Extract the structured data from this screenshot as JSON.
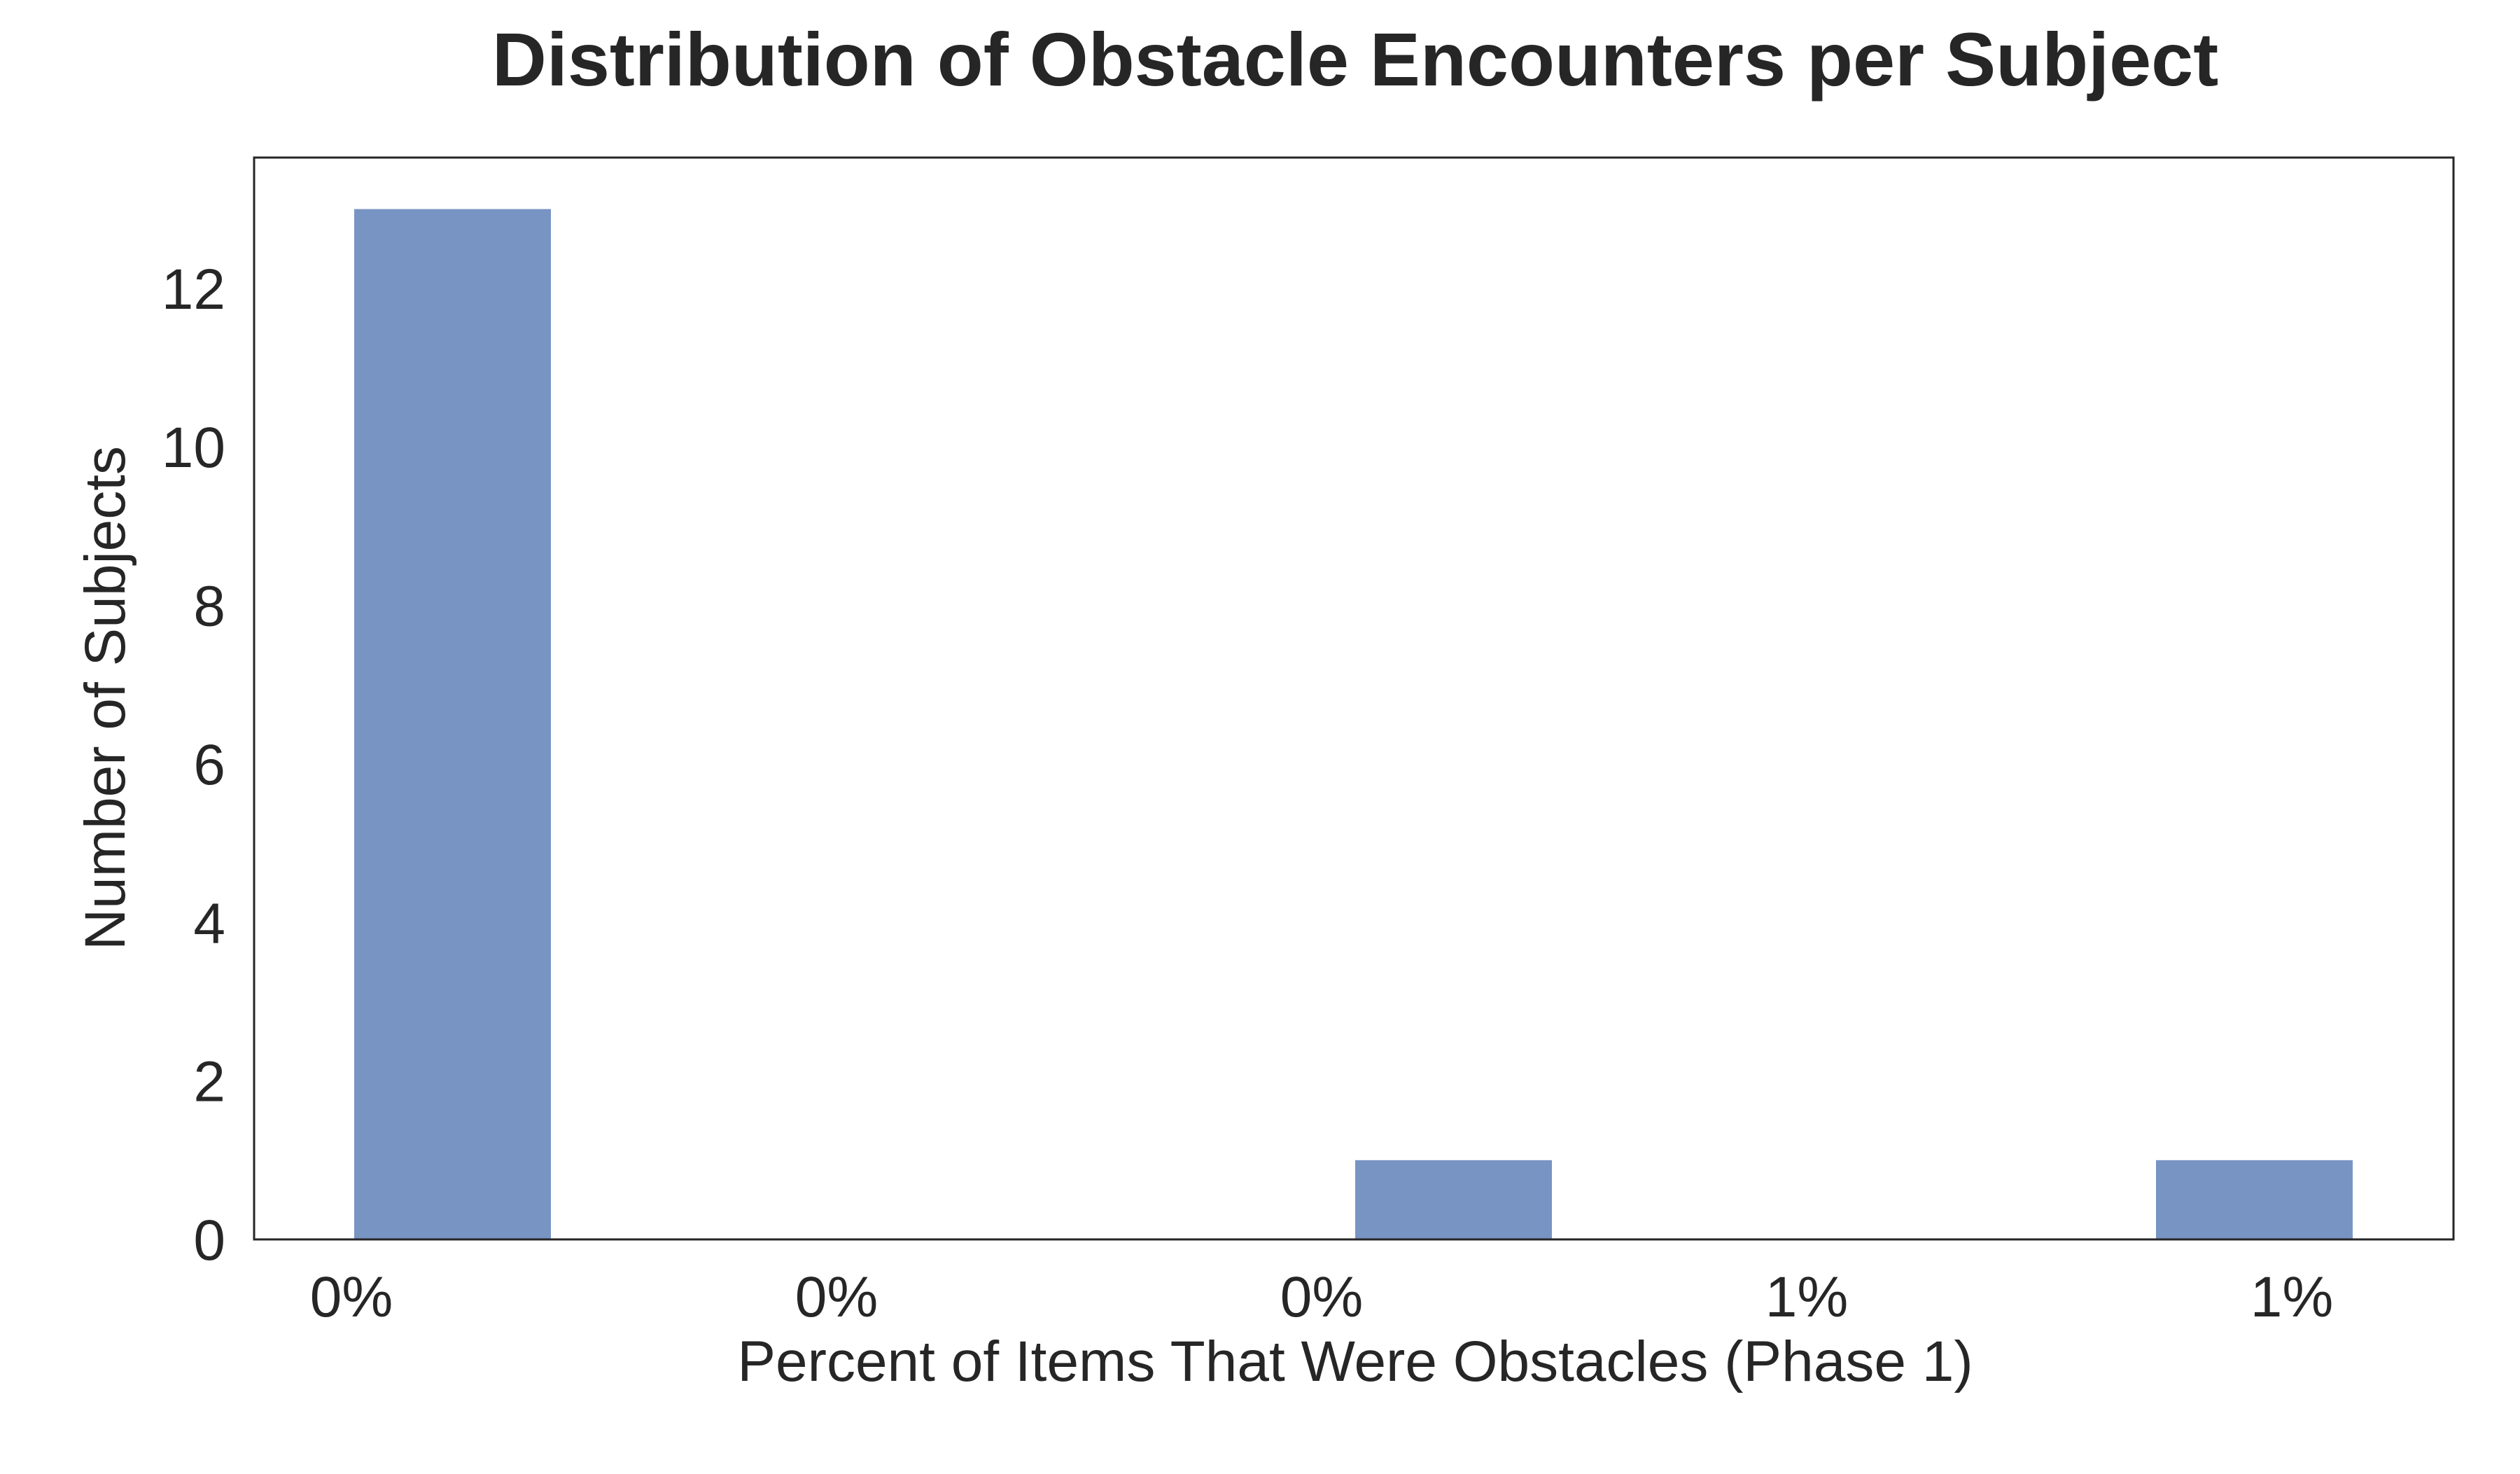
{
  "chart_data": {
    "type": "bar",
    "title": "Distribution of Obstacle Encounters per Subject",
    "xlabel": "Percent of Items That Were Obstacles (Phase 1)",
    "ylabel": "Number of Subjects",
    "x_tick_labels": [
      "0%",
      "0%",
      "0%",
      "1%",
      "1%"
    ],
    "y_ticks": [
      0,
      2,
      4,
      6,
      8,
      10,
      12
    ],
    "bins": [
      {
        "bin": 1,
        "value": 13
      },
      {
        "bin": 2,
        "value": 0
      },
      {
        "bin": 3,
        "value": 0
      },
      {
        "bin": 4,
        "value": 0
      },
      {
        "bin": 5,
        "value": 0
      },
      {
        "bin": 6,
        "value": 1
      },
      {
        "bin": 7,
        "value": 0
      },
      {
        "bin": 8,
        "value": 0
      },
      {
        "bin": 9,
        "value": 0
      },
      {
        "bin": 10,
        "value": 1
      }
    ],
    "ylim": [
      0,
      13.65
    ],
    "bar_color": "#7894c3",
    "grid": false,
    "legend": false
  }
}
